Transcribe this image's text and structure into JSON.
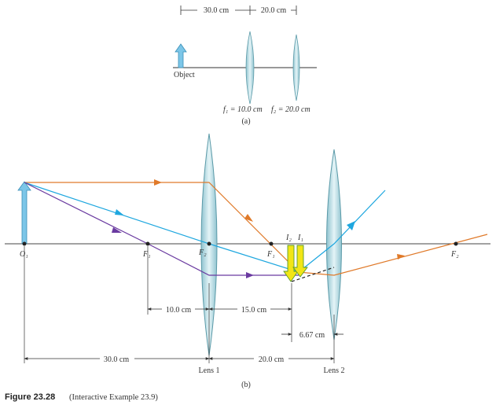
{
  "part_a": {
    "dist_object_lens1": "30.0 cm",
    "dist_lens1_lens2": "20.0 cm",
    "object_label": "Object",
    "f1_label": "f₁ = 10.0 cm",
    "f2_label": "f₂ = 20.0 cm",
    "panel_label": "(a)"
  },
  "part_b": {
    "o1_label": "O₁",
    "f1_left_label": "F₁",
    "f2_center_label": "F₂",
    "f1_right_label": "F₁",
    "f2_right_label": "F₂",
    "i2_label": "I₂",
    "i1_label": "I₁",
    "dim_10": "10.0 cm",
    "dim_15": "15.0 cm",
    "dim_667": "6.67 cm",
    "dim_30": "30.0 cm",
    "dim_20": "20.0 cm",
    "lens1_label": "Lens 1",
    "lens2_label": "Lens 2",
    "panel_label": "(b)"
  },
  "caption": {
    "figure_label": "Figure 23.28",
    "figure_text": "(Interactive Example 23.9)"
  },
  "colors": {
    "orange_ray": "#e07a2a",
    "blue_ray": "#1ea7df",
    "purple_ray": "#6a3aa0",
    "lens_fill": "#bfe0e8",
    "object_arrow": "#7cc6e8",
    "image_arrow": "#f2e515"
  }
}
